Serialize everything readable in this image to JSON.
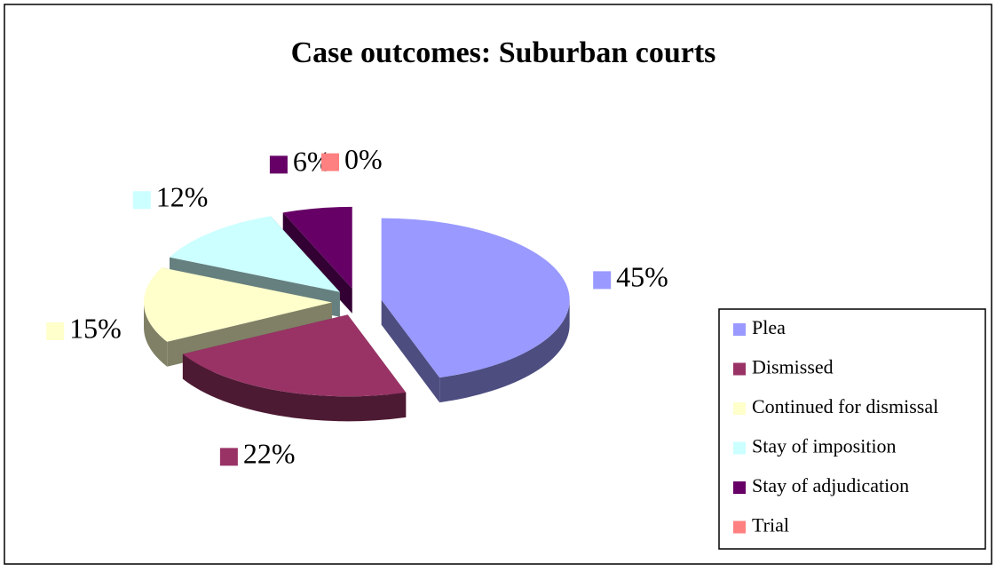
{
  "chart_data": {
    "type": "pie",
    "title": "Case outcomes: Suburban courts",
    "categories": [
      "Plea",
      "Dismissed",
      "Continued for dismissal",
      "Stay of imposition",
      "Stay of adjudication",
      "Trial"
    ],
    "values": [
      45,
      22,
      15,
      12,
      6,
      0
    ],
    "value_labels": [
      "45%",
      "22%",
      "15%",
      "12%",
      "6%",
      "0%"
    ],
    "colors": [
      "#9999ff",
      "#993366",
      "#ffffcc",
      "#ccffff",
      "#660066",
      "#ff8080"
    ],
    "legend": "right"
  }
}
